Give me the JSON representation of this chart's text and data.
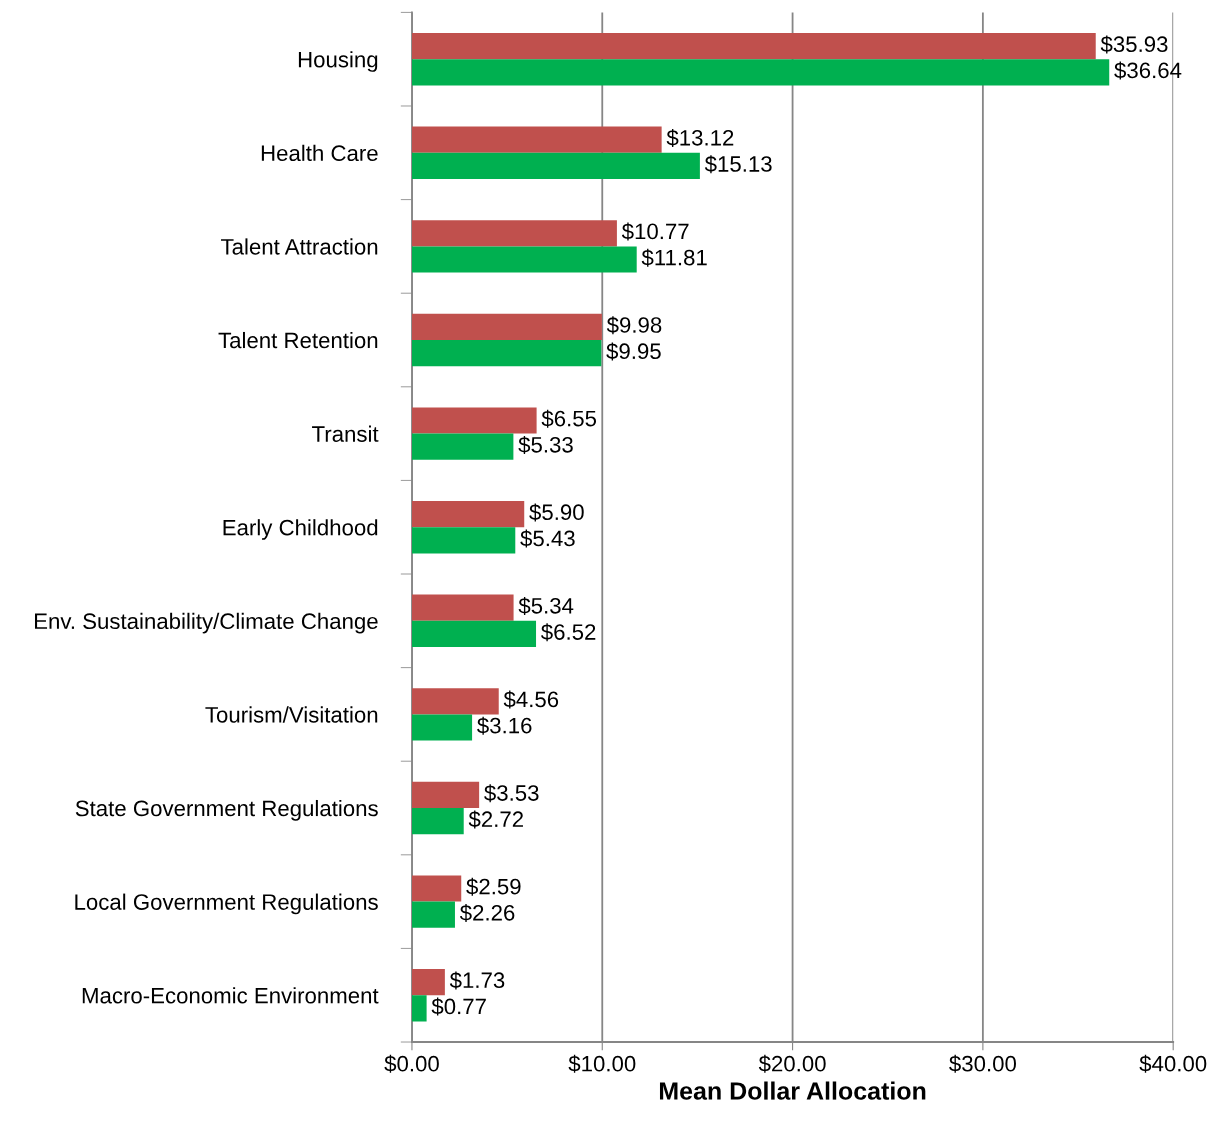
{
  "chart_data": {
    "type": "bar",
    "orientation": "horizontal",
    "xlabel": "Mean Dollar Allocation",
    "categories": [
      "Housing",
      "Health Care",
      "Talent Attraction",
      "Talent Retention",
      "Transit",
      "Early Childhood",
      "Env. Sustainability/Climate Change",
      "Tourism/Visitation",
      "State Government Regulations",
      "Local Government Regulations",
      "Macro-Economic Environment"
    ],
    "series": [
      {
        "color": "#c0504d",
        "values": [
          35.93,
          13.12,
          10.77,
          9.98,
          6.55,
          5.9,
          5.34,
          4.56,
          3.53,
          2.59,
          1.73
        ],
        "value_labels": [
          "$35.93",
          "$13.12",
          "$10.77",
          "$9.98",
          "$6.55",
          "$5.90",
          "$5.34",
          "$4.56",
          "$3.53",
          "$2.59",
          "$1.73"
        ]
      },
      {
        "color": "#00b050",
        "values": [
          36.64,
          15.13,
          11.81,
          9.95,
          5.33,
          5.43,
          6.52,
          3.16,
          2.72,
          2.26,
          0.77
        ],
        "value_labels": [
          "$36.64",
          "$15.13",
          "$11.81",
          "$9.95",
          "$5.33",
          "$5.43",
          "$6.52",
          "$3.16",
          "$2.72",
          "$2.26",
          "$0.77"
        ]
      }
    ],
    "xlim": [
      0,
      40
    ],
    "xticks": [
      {
        "value": 0,
        "label": "$0.00"
      },
      {
        "value": 10,
        "label": "$10.00"
      },
      {
        "value": 20,
        "label": "$20.00"
      },
      {
        "value": 30,
        "label": "$30.00"
      },
      {
        "value": 40,
        "label": "$40.00"
      }
    ],
    "grid": "x"
  }
}
